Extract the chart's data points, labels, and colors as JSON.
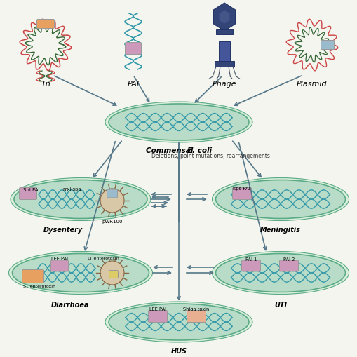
{
  "bg_color": "#f5f5f0",
  "cell_fill": "#b8dcc8",
  "cell_fill2": "#c8e8d8",
  "cell_edge": "#5aaa88",
  "cell_halo": "#d8eed8",
  "dna_color": "#3399aa",
  "arrow_color": "#557788",
  "tn_dna_color1": "#cc4444",
  "tn_dna_color2": "#336633",
  "insert_pink": "#cc99bb",
  "insert_orange": "#e8a060",
  "insert_blue": "#99bbcc",
  "insert_salmon": "#e8b090",
  "insert_yellow": "#ddcc66",
  "spiky_fill": "#d8c8a8",
  "spiky_edge": "#886644",
  "phage_color": "#334477",
  "labels": {
    "tn": "Tn",
    "pai": "PAI",
    "phage": "Phage",
    "plasmid": "Plasmid",
    "commensal": "Commensal E. coli",
    "dysentery": "Dysentery",
    "meningitis": "Meningitis",
    "diarrhoea": "Diarrhoea",
    "uti": "UTI",
    "hus": "HUS",
    "middle": "Deletions, point mutations, rearrangements",
    "shi_pai": "Shi PAI",
    "mxi_spa": "mxi-spa",
    "pwr100": "pWR100",
    "kps_pai": "kps PAI",
    "lee_pai": "LEE PAI",
    "lt_entero": "LT enterotoxin",
    "st_entero": "ST enterotoxin",
    "pai1": "PAI 1",
    "pai2": "PAI 2",
    "lee_pai_hus": "LEE PAI",
    "shiga": "Shiga toxin"
  }
}
